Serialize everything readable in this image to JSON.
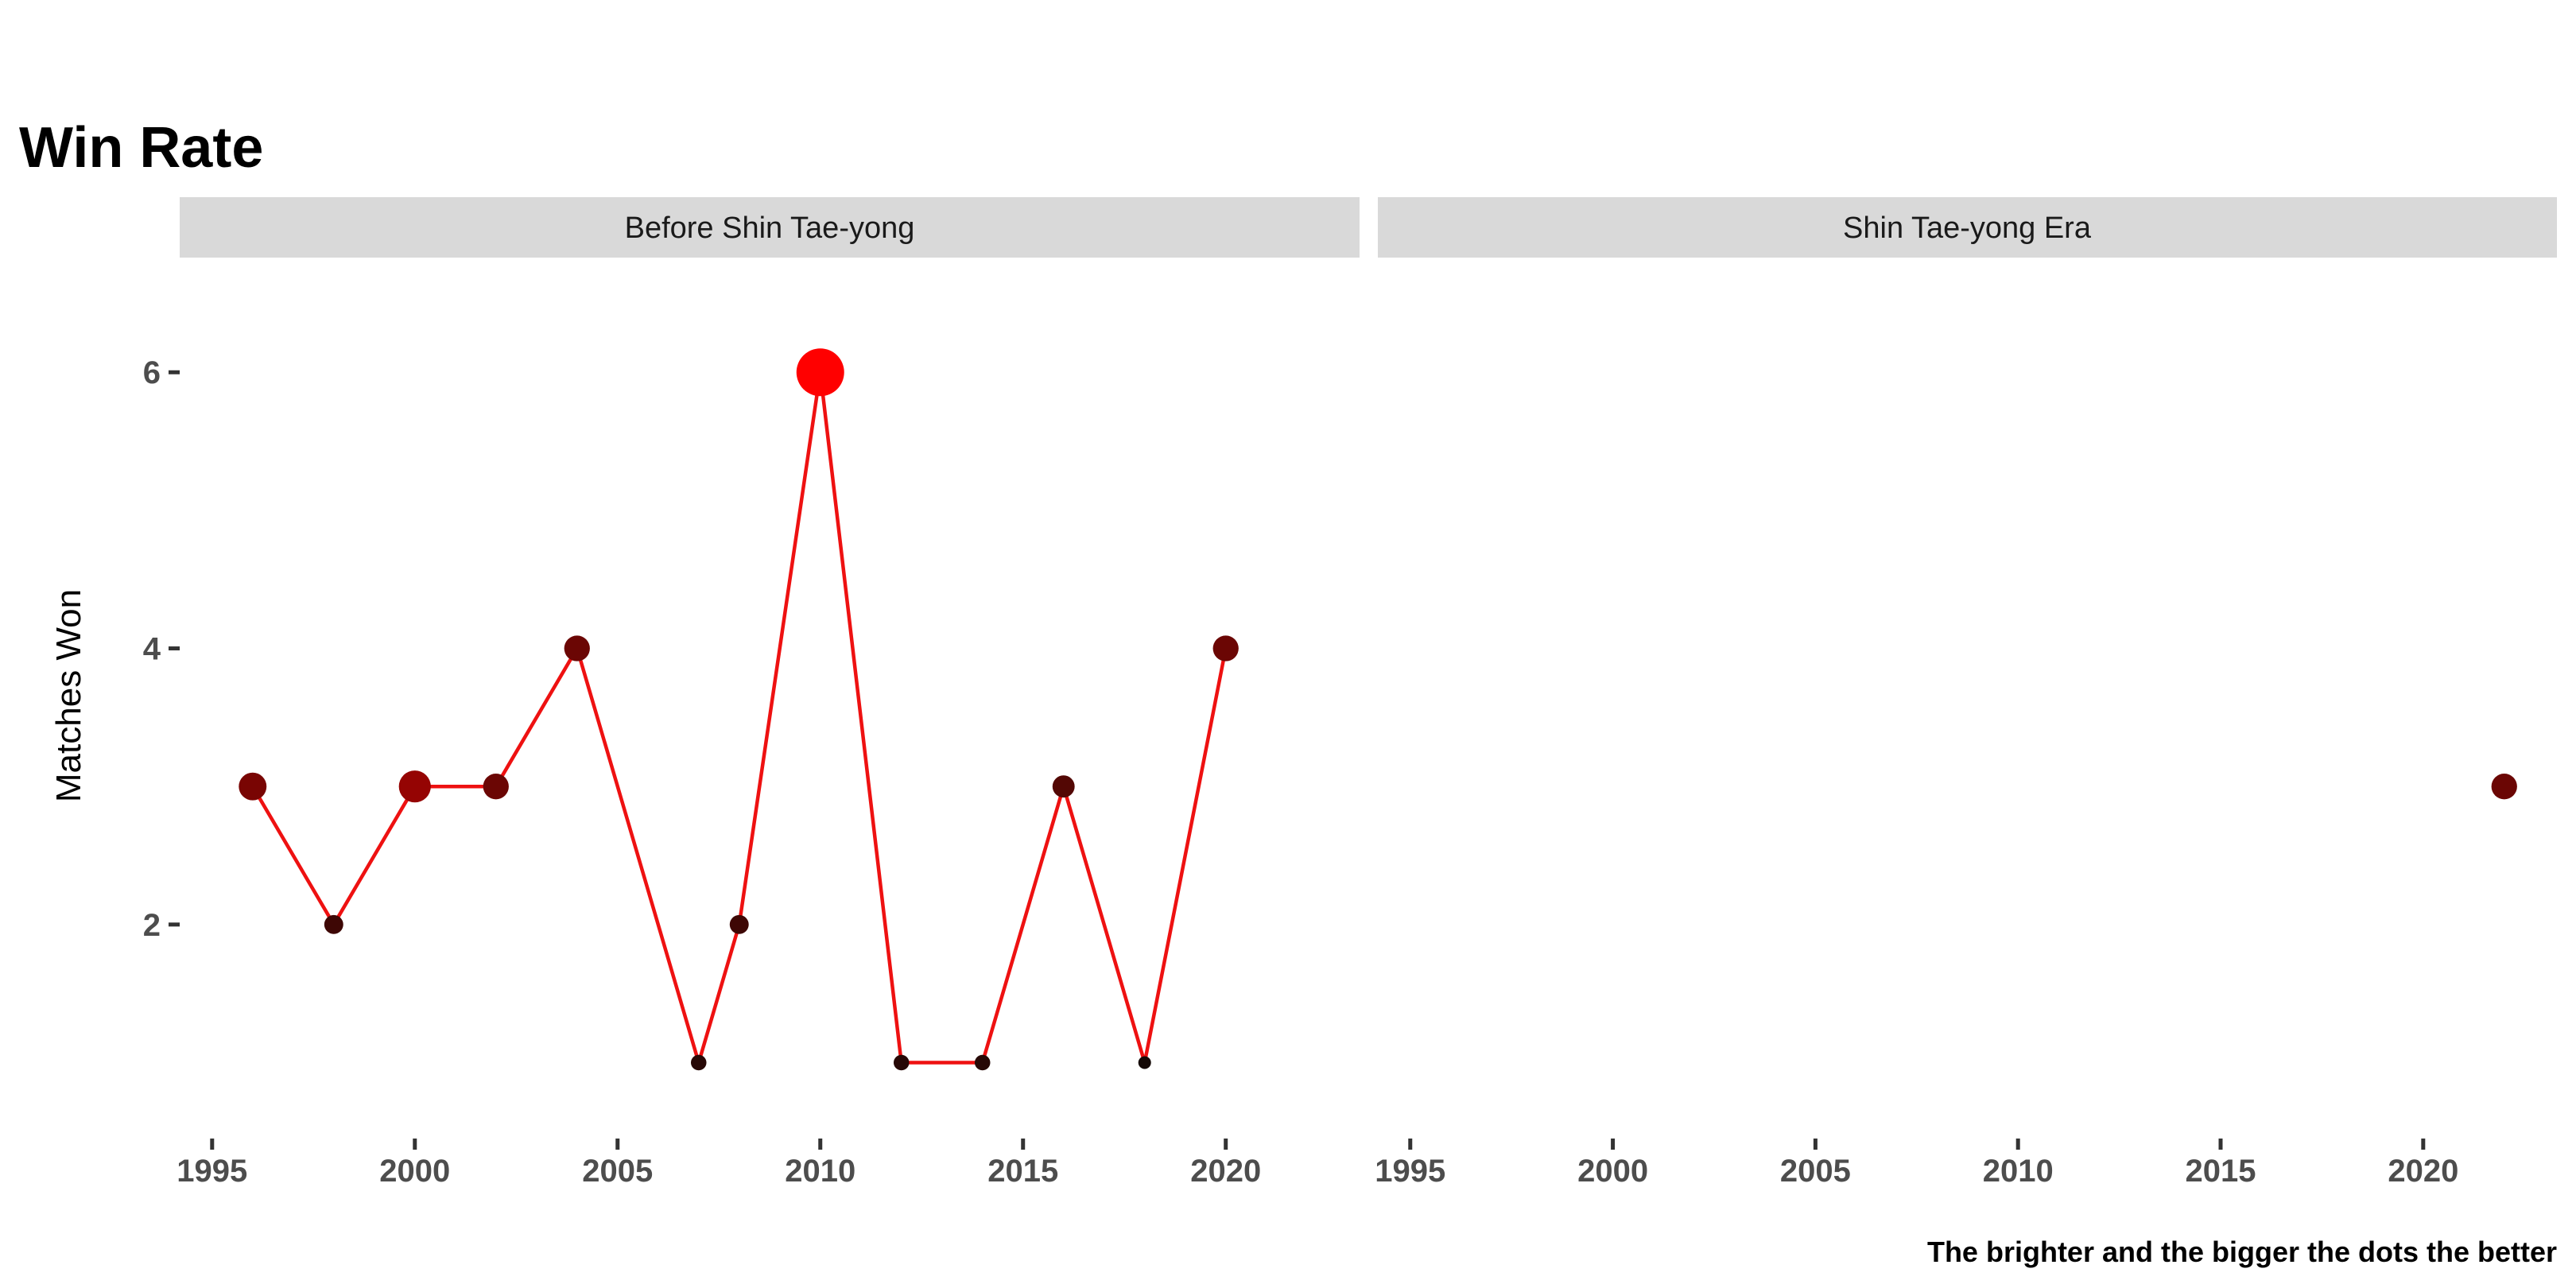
{
  "chart_data": {
    "type": "scatter",
    "title": "Win Rate",
    "ylabel": "Matches Won",
    "xlabel": "",
    "caption": "The brighter and the bigger the dots the better",
    "x_ticks": [
      1995,
      2000,
      2005,
      2010,
      2015,
      2020
    ],
    "y_ticks": [
      2,
      4,
      6
    ],
    "xlim": [
      1994.2,
      2023.3
    ],
    "ylim": [
      0.45,
      6.75
    ],
    "grid": false,
    "line_color": "#ee1111",
    "color_scale": [
      "#140906",
      "#ff0000"
    ],
    "panels": [
      {
        "label": "Before Shin Tae-yong",
        "points": [
          {
            "x": 1996,
            "y": 3,
            "win_rate": 0.43
          },
          {
            "x": 1998,
            "y": 2,
            "win_rate": 0.18
          },
          {
            "x": 2000,
            "y": 3,
            "win_rate": 0.55
          },
          {
            "x": 2002,
            "y": 3,
            "win_rate": 0.37
          },
          {
            "x": 2004,
            "y": 4,
            "win_rate": 0.37
          },
          {
            "x": 2007,
            "y": 1,
            "win_rate": 0.08
          },
          {
            "x": 2008,
            "y": 2,
            "win_rate": 0.18
          },
          {
            "x": 2010,
            "y": 6,
            "win_rate": 1.0
          },
          {
            "x": 2012,
            "y": 1,
            "win_rate": 0.08
          },
          {
            "x": 2014,
            "y": 1,
            "win_rate": 0.08
          },
          {
            "x": 2016,
            "y": 3,
            "win_rate": 0.27
          },
          {
            "x": 2018,
            "y": 1,
            "win_rate": 0.0
          },
          {
            "x": 2020,
            "y": 4,
            "win_rate": 0.37
          }
        ]
      },
      {
        "label": "Shin Tae-yong Era",
        "points": [
          {
            "x": 2022,
            "y": 3,
            "win_rate": 0.37
          }
        ]
      }
    ]
  }
}
